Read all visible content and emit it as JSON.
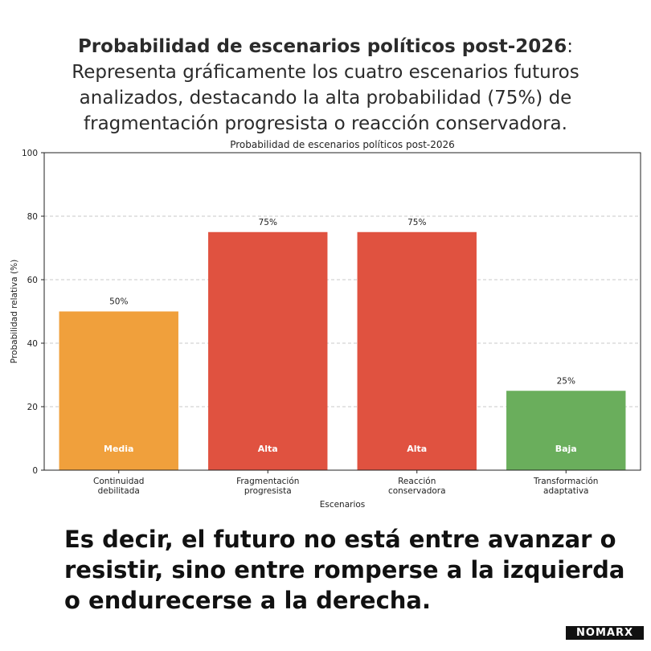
{
  "header": {
    "title_bold": "Probabilidad de escenarios políticos post-2026",
    "title_rest": ": Representa gráficamente los cuatro escenarios futuros analizados, destacando la alta probabilidad (75%) de fragmentación progresista o reacción conservadora."
  },
  "footer": {
    "text": "Es decir, el futuro no está entre avanzar o resistir, sino entre romperse a la izquierda o endurecerse a la derecha."
  },
  "brand": {
    "logo_text": "NOMARX"
  },
  "colors": {
    "media": "#f0a03c",
    "alta": "#e05240",
    "baja": "#6aae5c"
  },
  "chart_data": {
    "type": "bar",
    "title": "Probabilidad de escenarios políticos post-2026",
    "xlabel": "Escenarios",
    "ylabel": "Probabilidad relativa (%)",
    "ylim": [
      0,
      100
    ],
    "yticks": [
      0,
      20,
      40,
      60,
      80,
      100
    ],
    "grid": "horizontal dashed",
    "categories": [
      [
        "Continuidad",
        "debilitada"
      ],
      [
        "Fragmentación",
        "progresista"
      ],
      [
        "Reacción",
        "conservadora"
      ],
      [
        "Transformación",
        "adaptativa"
      ]
    ],
    "values": [
      50,
      75,
      75,
      25
    ],
    "value_labels": [
      "50%",
      "75%",
      "75%",
      "25%"
    ],
    "level_labels": [
      "Media",
      "Alta",
      "Alta",
      "Baja"
    ],
    "bar_colors": [
      "#f0a03c",
      "#e05240",
      "#e05240",
      "#6aae5c"
    ]
  }
}
